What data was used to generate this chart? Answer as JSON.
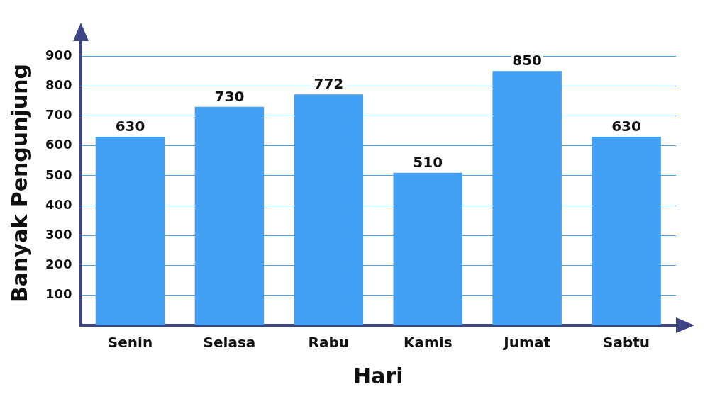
{
  "chart_data": {
    "type": "bar",
    "xlabel": "Hari",
    "ylabel": "Banyak Pengunjung",
    "categories": [
      "Senin",
      "Selasa",
      "Rabu",
      "Kamis",
      "Jumat",
      "Sabtu"
    ],
    "values": [
      630,
      730,
      772,
      510,
      850,
      630
    ],
    "color": "#42a0f5",
    "ylim": [
      0,
      950
    ],
    "yticks": [
      100,
      200,
      300,
      400,
      500,
      600,
      700,
      800,
      900
    ],
    "grid": "y",
    "data_labels": true,
    "legend": false
  }
}
